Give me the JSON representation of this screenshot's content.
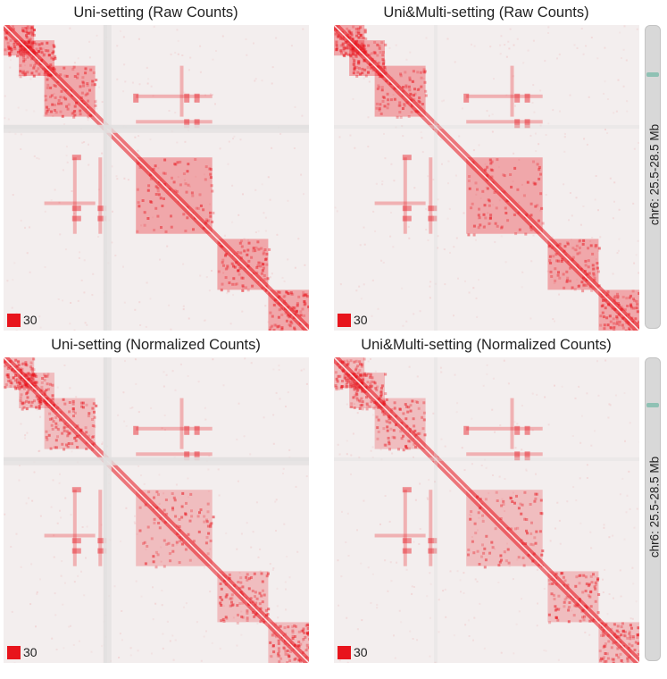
{
  "colors": {
    "contact": "#e8141c",
    "background": "#f3eeee",
    "track": "#d8d8d8",
    "track_highlight": "#8fc1b4"
  },
  "panels": [
    {
      "title": "Uni-setting (Raw Counts)",
      "scale_value": "30"
    },
    {
      "title": "Uni&Multi-setting (Raw Counts)",
      "scale_value": "30"
    },
    {
      "title": "Uni-setting (Normalized Counts)",
      "scale_value": "30"
    },
    {
      "title": "Uni&Multi-setting (Normalized Counts)",
      "scale_value": "30"
    }
  ],
  "tracks": [
    {
      "label": "chr6: 25.5-28.5 Mb"
    },
    {
      "label": "chr6: 25.5-28.5 Mb"
    }
  ],
  "chart_data": [
    {
      "type": "heatmap",
      "title": "Uni-setting (Raw Counts)",
      "region": "chr6: 25.5-28.5 Mb",
      "color_scale_max": 30,
      "domains_mb": [
        [
          25.5,
          25.8
        ],
        [
          25.65,
          26.0
        ],
        [
          25.9,
          26.4
        ],
        [
          26.8,
          27.55
        ],
        [
          27.6,
          28.1
        ],
        [
          28.1,
          28.5
        ]
      ],
      "loops_mb": [
        [
          26.2,
          26.8
        ],
        [
          26.2,
          27.3
        ],
        [
          26.2,
          27.4
        ],
        [
          26.45,
          27.3
        ],
        [
          26.45,
          27.4
        ]
      ],
      "gaps_mb": [
        [
          26.48,
          26.56
        ]
      ]
    },
    {
      "type": "heatmap",
      "title": "Uni&Multi-setting (Raw Counts)",
      "region": "chr6: 25.5-28.5 Mb",
      "color_scale_max": 30,
      "domains_mb": [
        [
          25.5,
          25.8
        ],
        [
          25.65,
          26.0
        ],
        [
          25.9,
          26.4
        ],
        [
          26.8,
          27.55
        ],
        [
          27.6,
          28.1
        ],
        [
          28.1,
          28.5
        ]
      ],
      "loops_mb": [
        [
          26.2,
          26.8
        ],
        [
          26.2,
          27.3
        ],
        [
          26.2,
          27.4
        ],
        [
          26.45,
          27.3
        ],
        [
          26.45,
          27.4
        ]
      ],
      "gaps_mb": []
    },
    {
      "type": "heatmap",
      "title": "Uni-setting (Normalized Counts)",
      "region": "chr6: 25.5-28.5 Mb",
      "color_scale_max": 30,
      "domains_mb": [
        [
          25.5,
          25.8
        ],
        [
          25.65,
          26.0
        ],
        [
          25.9,
          26.4
        ],
        [
          26.8,
          27.55
        ],
        [
          27.6,
          28.1
        ],
        [
          28.1,
          28.5
        ]
      ],
      "loops_mb": [
        [
          26.2,
          26.8
        ],
        [
          26.2,
          27.3
        ],
        [
          26.2,
          27.4
        ],
        [
          26.45,
          27.3
        ],
        [
          26.45,
          27.4
        ]
      ],
      "gaps_mb": [
        [
          26.48,
          26.56
        ]
      ]
    },
    {
      "type": "heatmap",
      "title": "Uni&Multi-setting (Normalized Counts)",
      "region": "chr6: 25.5-28.5 Mb",
      "color_scale_max": 30,
      "domains_mb": [
        [
          25.5,
          25.8
        ],
        [
          25.65,
          26.0
        ],
        [
          25.9,
          26.4
        ],
        [
          26.8,
          27.55
        ],
        [
          27.6,
          28.1
        ],
        [
          28.1,
          28.5
        ]
      ],
      "loops_mb": [
        [
          26.2,
          26.8
        ],
        [
          26.2,
          27.3
        ],
        [
          26.2,
          27.4
        ],
        [
          26.45,
          27.3
        ],
        [
          26.45,
          27.4
        ]
      ],
      "gaps_mb": []
    }
  ]
}
